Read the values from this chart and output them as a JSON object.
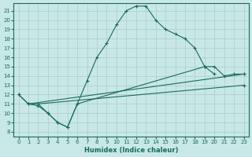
{
  "xlabel": "Humidex (Indice chaleur)",
  "bg_color": "#c8e8e8",
  "line_color": "#1a6b5a",
  "grid_color": "#aacccc",
  "xlim": [
    -0.5,
    23.5
  ],
  "ylim": [
    7.5,
    21.8
  ],
  "xticks": [
    0,
    1,
    2,
    3,
    4,
    5,
    6,
    7,
    8,
    9,
    10,
    11,
    12,
    13,
    14,
    15,
    16,
    17,
    18,
    19,
    20,
    21,
    22,
    23
  ],
  "yticks": [
    8,
    9,
    10,
    11,
    12,
    13,
    14,
    15,
    16,
    17,
    18,
    19,
    20,
    21
  ],
  "curve1_x": [
    0,
    1,
    2,
    3,
    4,
    5,
    6,
    7,
    8,
    9,
    10,
    11,
    12,
    13,
    14,
    15,
    16,
    17,
    18,
    19,
    20
  ],
  "curve1_y": [
    12,
    11,
    10.8,
    10,
    9,
    8.5,
    11,
    13.5,
    16,
    17.5,
    19.5,
    21,
    21.5,
    21.5,
    20,
    19,
    18.5,
    18,
    17,
    15,
    14.2
  ],
  "curve2_x": [
    0,
    1,
    2,
    3,
    4,
    5,
    6,
    19,
    20,
    21,
    22,
    23
  ],
  "curve2_y": [
    12,
    11,
    11,
    10,
    9,
    8.5,
    11,
    15,
    15,
    14,
    14.2,
    14.2
  ],
  "line3_x": [
    1,
    23
  ],
  "line3_y": [
    11,
    14.2
  ],
  "line4_x": [
    2,
    23
  ],
  "line4_y": [
    11,
    13.0
  ]
}
